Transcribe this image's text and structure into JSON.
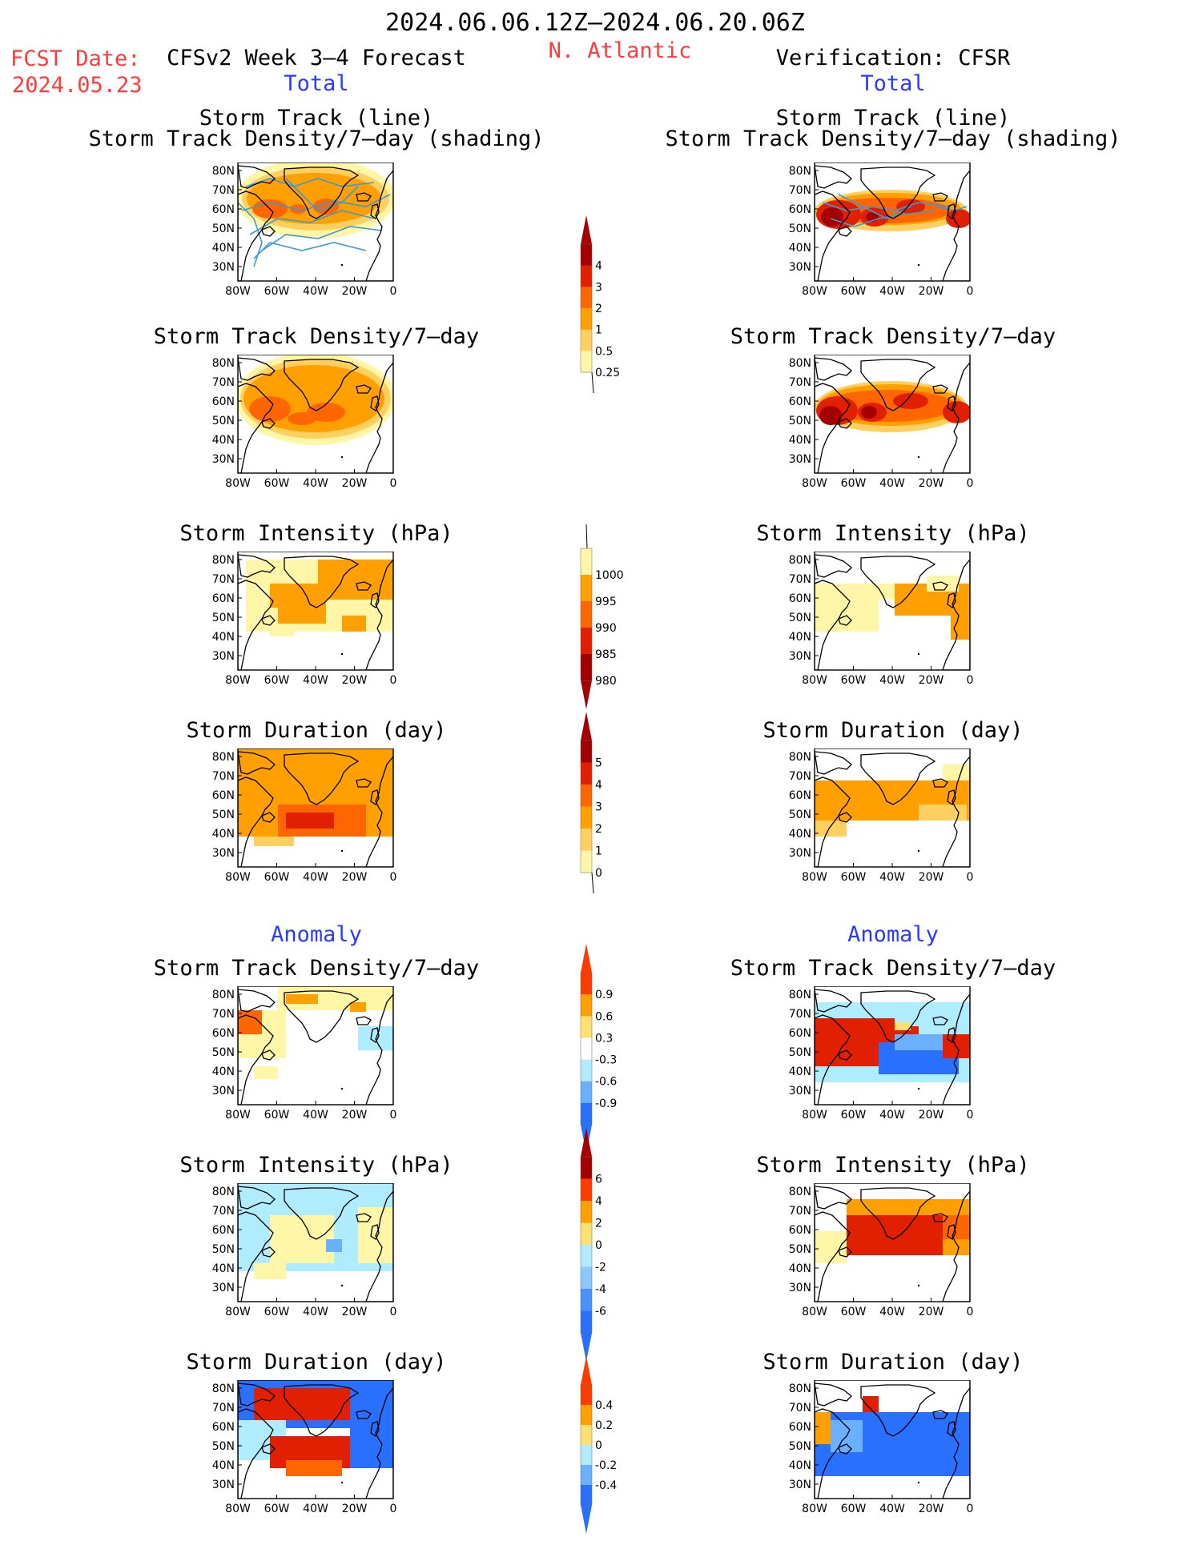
{
  "header": {
    "period": "2024.06.06.12Z–2024.06.20.06Z",
    "region": "N. Atlantic",
    "fcst_label": "FCST Date:",
    "fcst_date": "2024.05.23",
    "left_title": "CFSv2 Week 3–4 Forecast",
    "right_title": "Verification: CFSR",
    "total_left": "Total",
    "total_right": "Total",
    "anomaly_left": "Anomaly",
    "anomaly_right": "Anomaly"
  },
  "axes": {
    "lat_labels": [
      "80N",
      "70N",
      "60N",
      "50N",
      "40N",
      "30N"
    ],
    "lon_labels": [
      "80W",
      "60W",
      "40W",
      "20W",
      "0"
    ]
  },
  "panels": {
    "left": [
      {
        "title1": "Storm Track (line)",
        "title2": "Storm Track Density/7–day (shading)",
        "field": "track_f"
      },
      {
        "title1": "Storm Track Density/7–day",
        "field": "dens_f"
      },
      {
        "title1": "Storm Intensity (hPa)",
        "field": "int_f"
      },
      {
        "title1": "Storm Duration (day)",
        "field": "dur_f"
      },
      {
        "title1": "Storm Track Density/7–day",
        "field": "adens_f"
      },
      {
        "title1": "Storm Intensity (hPa)",
        "field": "aint_f"
      },
      {
        "title1": "Storm Duration (day)",
        "field": "adur_f"
      }
    ],
    "right": [
      {
        "title1": "Storm Track (line)",
        "title2": "Storm Track Density/7–day (shading)",
        "field": "track_v"
      },
      {
        "title1": "Storm Track Density/7–day",
        "field": "dens_v"
      },
      {
        "title1": "Storm Intensity (hPa)",
        "field": "int_v"
      },
      {
        "title1": "Storm Duration (day)",
        "field": "dur_v"
      },
      {
        "title1": "Storm Track Density/7–day",
        "field": "adens_v"
      },
      {
        "title1": "Storm Intensity (hPa)",
        "field": "aint_v"
      },
      {
        "title1": "Storm Duration (day)",
        "field": "adur_v"
      }
    ]
  },
  "colorbars": [
    {
      "name": "density",
      "labels": [
        "4",
        "3",
        "2",
        "1",
        "0.5",
        "0.25"
      ],
      "colors": [
        "#a50000",
        "#e02000",
        "#ff6600",
        "#ffa000",
        "#ffd060",
        "#fff6a8"
      ],
      "top_arrow": "#a50000",
      "bottom_arrow": "none"
    },
    {
      "name": "intensity",
      "labels": [
        "1000",
        "995",
        "990",
        "985",
        "980"
      ],
      "colors": [
        "#fff6a8",
        "#ffa000",
        "#ff6600",
        "#e02000",
        "#a50000"
      ],
      "top_arrow": "none",
      "bottom_arrow": "#a50000"
    },
    {
      "name": "duration",
      "labels": [
        "5",
        "4",
        "3",
        "2",
        "1",
        "0"
      ],
      "colors": [
        "#a50000",
        "#e02000",
        "#ff6600",
        "#ffa000",
        "#ffd060",
        "#fff6a8"
      ],
      "top_arrow": "#a50000",
      "bottom_arrow": "none"
    },
    {
      "name": "anom_density",
      "labels": [
        "0.9",
        "0.6",
        "0.3",
        "-0.3",
        "-0.6",
        "-0.9"
      ],
      "colors": [
        "#ff3b00",
        "#ffa000",
        "#ffe070",
        "#ffffff",
        "#b0ecff",
        "#6ab0ff",
        "#2a70ff"
      ],
      "top_arrow": "#ff3b00",
      "bottom_arrow": "#2a70ff"
    },
    {
      "name": "anom_intensity",
      "labels": [
        "6",
        "4",
        "2",
        "0",
        "-2",
        "-4",
        "-6"
      ],
      "colors": [
        "#a50000",
        "#ff3b00",
        "#ffa000",
        "#ffe070",
        "#b0ecff",
        "#8ac8ff",
        "#4a90ff",
        "#2a70ff"
      ],
      "top_arrow": "#a50000",
      "bottom_arrow": "#2a70ff"
    },
    {
      "name": "anom_duration",
      "labels": [
        "0.4",
        "0.2",
        "0",
        "-0.2",
        "-0.4"
      ],
      "colors": [
        "#ff3b00",
        "#ffa000",
        "#ffe070",
        "#b0ecff",
        "#6ab0ff",
        "#2a70ff"
      ],
      "top_arrow": "#ff3b00",
      "bottom_arrow": "#2a70ff"
    }
  ],
  "colors": {
    "dark_red": "#a50000",
    "red": "#e02000",
    "orange_red": "#ff6600",
    "orange": "#ffa000",
    "light_orange": "#ffd060",
    "pale_yellow": "#fff6a8",
    "cyan": "#b0ecff",
    "light_blue": "#6ab0ff",
    "blue": "#2a70ff",
    "track_line": "#3a9ad9"
  }
}
